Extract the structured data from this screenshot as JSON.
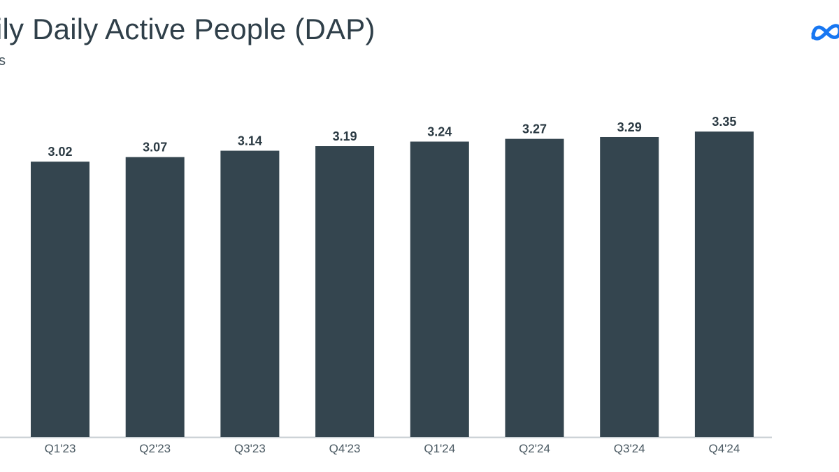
{
  "header": {
    "title": "ily Daily Active People (DAP)",
    "subtitle": "s"
  },
  "logo": {
    "icon": "meta-logo-icon",
    "color": "#1877f2"
  },
  "colors": {
    "bar": "#34454f",
    "axis": "#c9cfd3",
    "text": "#2f3f49"
  },
  "chart_data": {
    "type": "bar",
    "categories": [
      "Q1'23",
      "Q2'23",
      "Q3'23",
      "Q4'23",
      "Q1'24",
      "Q2'24",
      "Q3'24",
      "Q4'24"
    ],
    "values": [
      3.02,
      3.07,
      3.14,
      3.19,
      3.24,
      3.27,
      3.29,
      3.35
    ],
    "value_labels": [
      "3.02",
      "3.07",
      "3.14",
      "3.19",
      "3.24",
      "3.27",
      "3.29",
      "3.35"
    ],
    "title": "ily Daily Active People (DAP)",
    "xlabel": "",
    "ylabel": "",
    "ylim": [
      0,
      3.5
    ],
    "grid": false,
    "legend": "none"
  }
}
